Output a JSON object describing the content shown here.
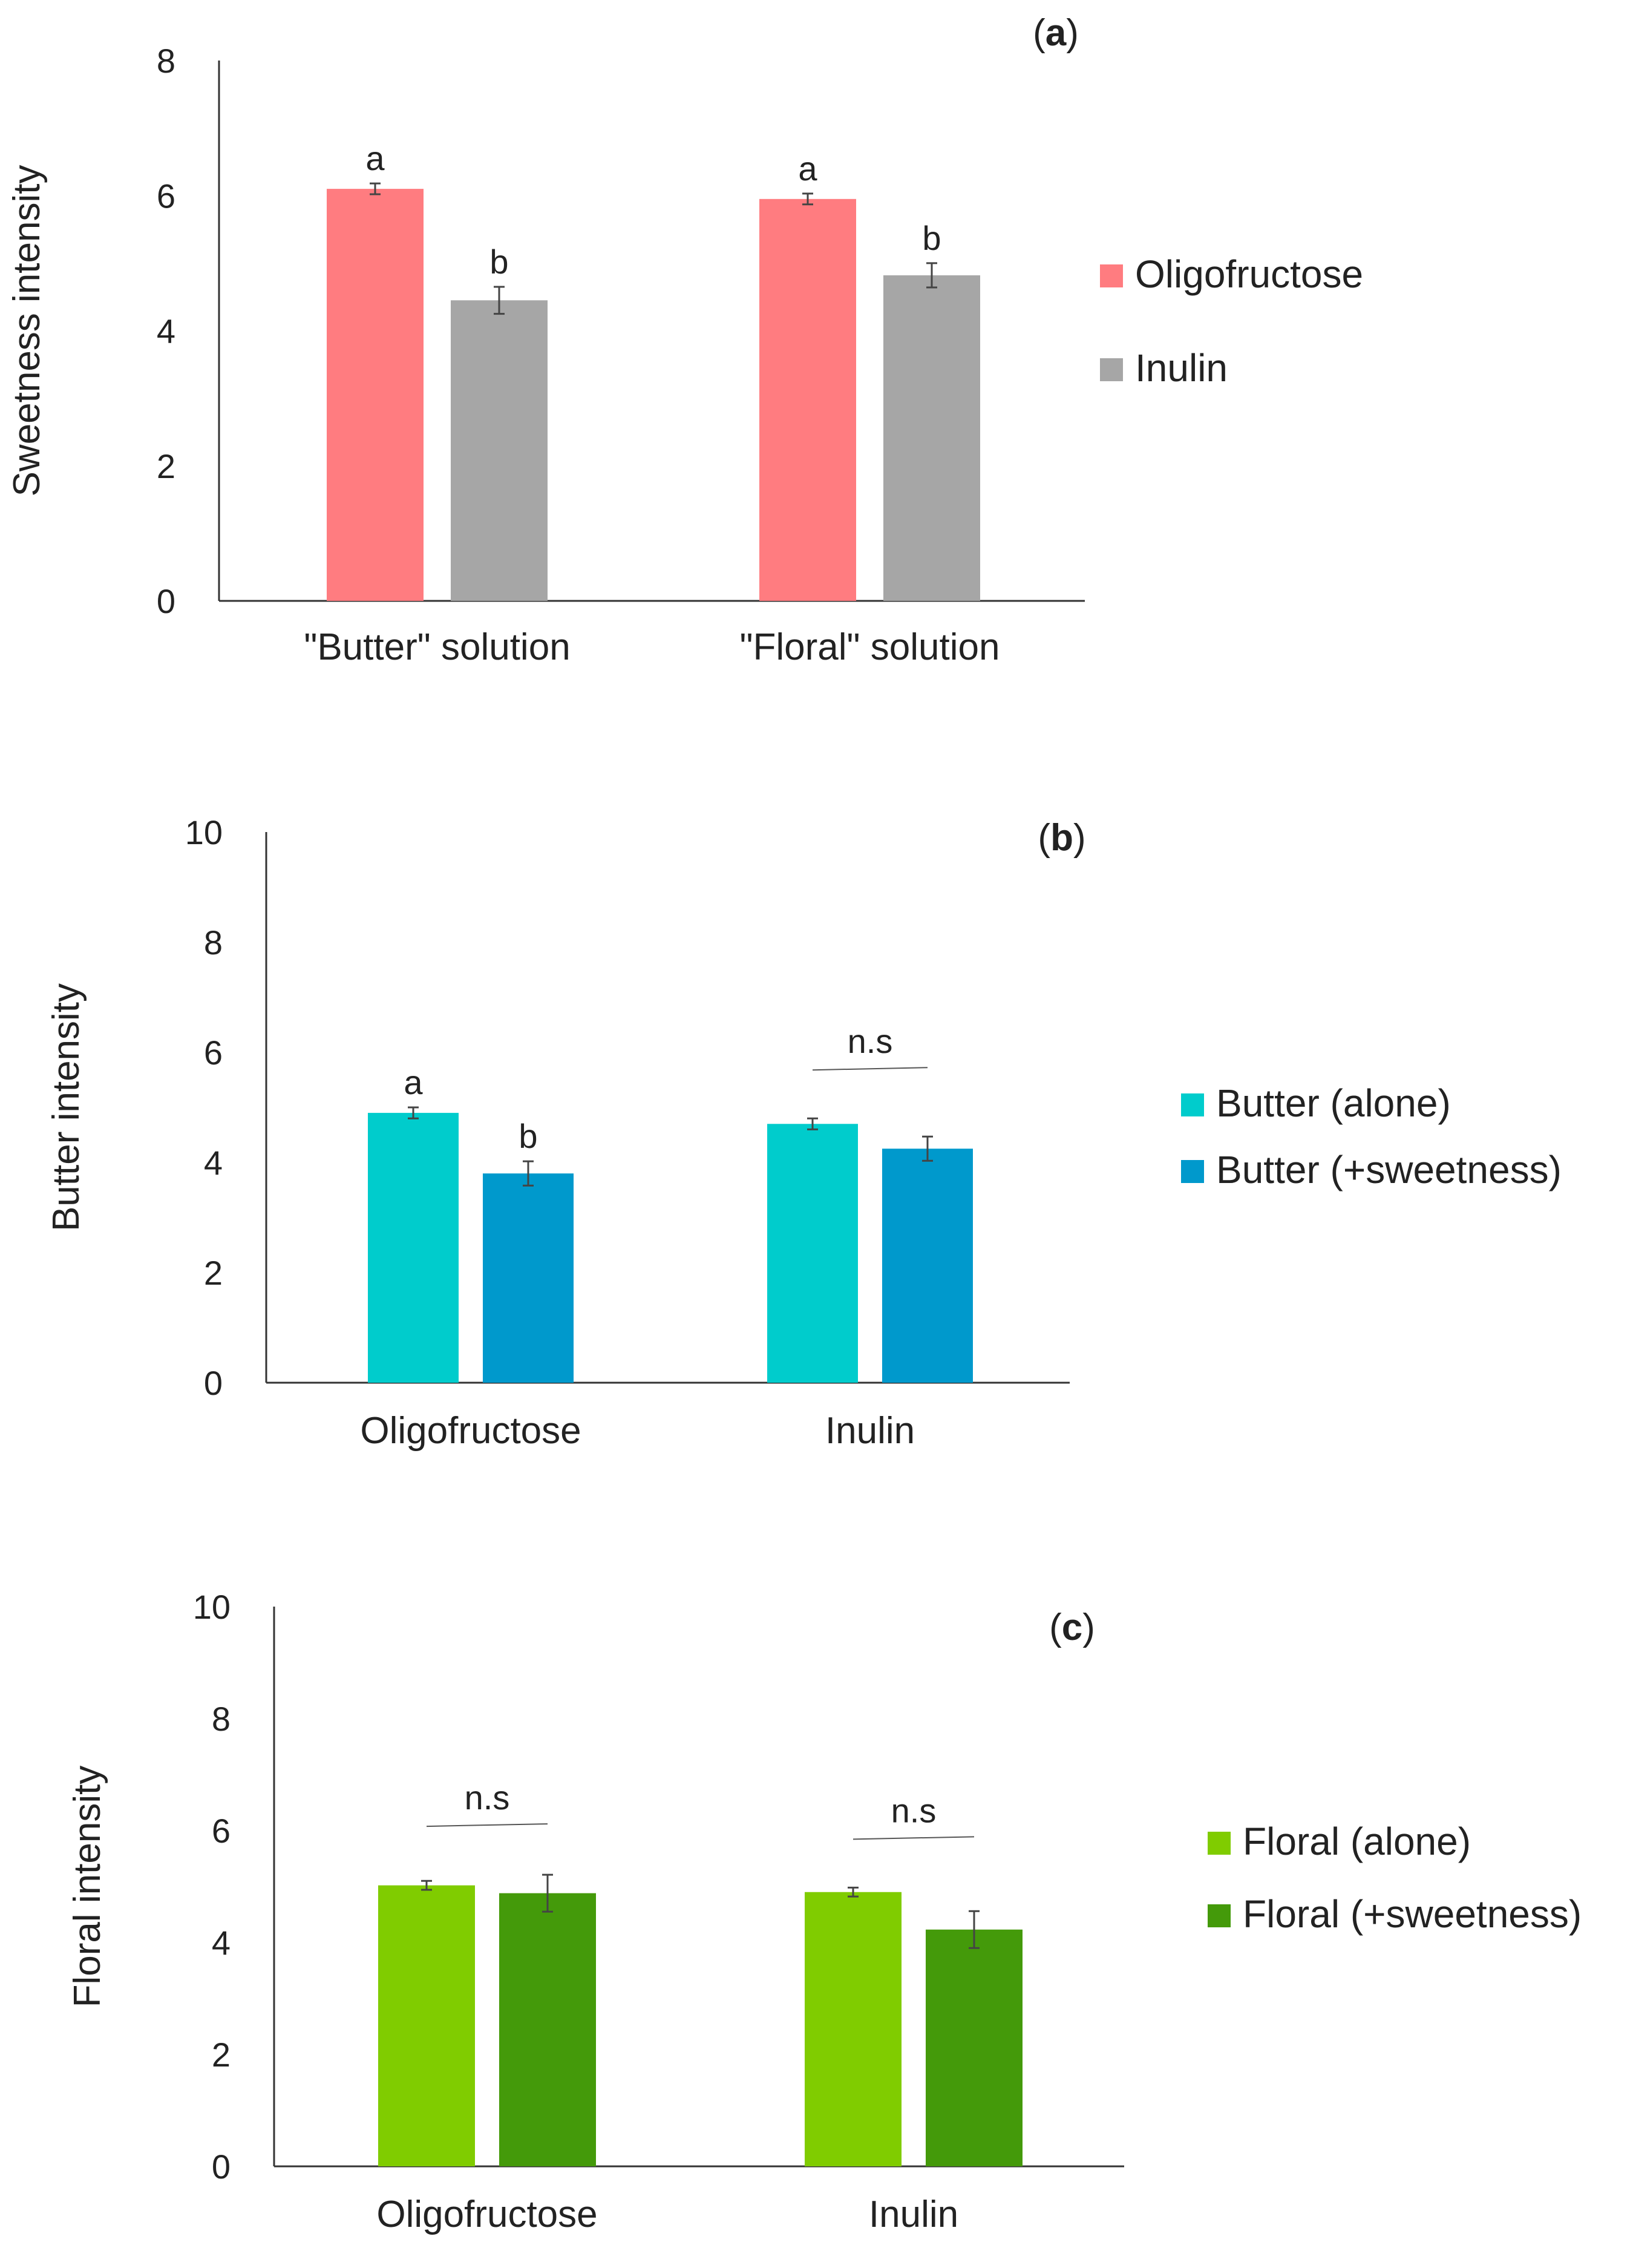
{
  "chart_data": [
    {
      "type": "bar",
      "panel_label": "a",
      "ylabel": "Sweetness intensity",
      "ylim": [
        0,
        8
      ],
      "yticks": [
        "0",
        "2",
        "4",
        "6",
        "8"
      ],
      "categories": [
        "\"Butter\" solution",
        "\"Floral\" solution"
      ],
      "series": [
        {
          "name": "Oligofructose",
          "color": "#ff7c80",
          "values": [
            6.1,
            5.95
          ],
          "errors": [
            0.08,
            0.08
          ],
          "labels": [
            "a",
            "a"
          ]
        },
        {
          "name": "Inulin",
          "color": "#a6a6a6",
          "values": [
            4.45,
            4.82
          ],
          "errors": [
            0.2,
            0.18
          ],
          "labels": [
            "b",
            "b"
          ]
        }
      ],
      "annotations": [],
      "legend": "right"
    },
    {
      "type": "bar",
      "panel_label": "b",
      "ylabel": "Butter intensity",
      "ylim": [
        0,
        10
      ],
      "yticks": [
        "0",
        "2",
        "4",
        "6",
        "8",
        "10"
      ],
      "categories": [
        "Oligofructose",
        "Inulin"
      ],
      "series": [
        {
          "name": "Butter (alone)",
          "color": "#00cccc",
          "values": [
            4.9,
            4.7
          ],
          "errors": [
            0.1,
            0.1
          ],
          "labels": [
            "a",
            ""
          ]
        },
        {
          "name": "Butter (+sweetness)",
          "color": "#0099cc",
          "values": [
            3.8,
            4.25
          ],
          "errors": [
            0.22,
            0.22
          ],
          "labels": [
            "b",
            ""
          ]
        }
      ],
      "annotations": [
        {
          "category_index": 1,
          "text": "n.s"
        }
      ],
      "legend": "right"
    },
    {
      "type": "bar",
      "panel_label": "c",
      "ylabel": "Floral intensity",
      "ylim": [
        0,
        10
      ],
      "yticks": [
        "0",
        "2",
        "4",
        "6",
        "8",
        "10"
      ],
      "categories": [
        "Oligofructose",
        "Inulin"
      ],
      "series": [
        {
          "name": "Floral (alone)",
          "color": "#80cc00",
          "values": [
            5.02,
            4.9
          ],
          "errors": [
            0.08,
            0.08
          ],
          "labels": [
            "",
            ""
          ]
        },
        {
          "name": "Floral (+sweetness)",
          "color": "#449a0a",
          "values": [
            4.88,
            4.23
          ],
          "errors": [
            0.33,
            0.33
          ],
          "labels": [
            "",
            ""
          ]
        }
      ],
      "annotations": [
        {
          "category_index": 0,
          "text": "n.s"
        },
        {
          "category_index": 1,
          "text": "n.s"
        }
      ],
      "legend": "right"
    }
  ]
}
